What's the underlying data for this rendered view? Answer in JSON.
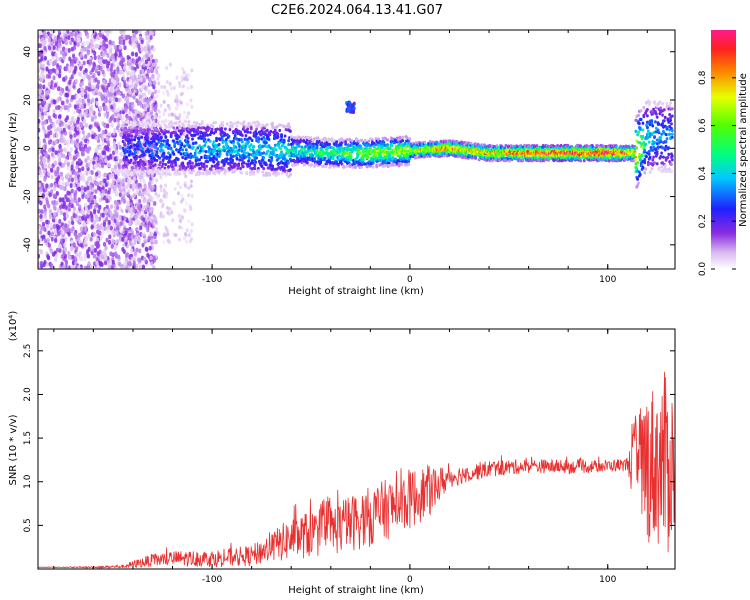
{
  "title": "C2E6.2024.064.13.41.G07",
  "chart_data": [
    {
      "type": "heatmap",
      "xlabel": "Height of straight line (km)",
      "ylabel": "Frequency (Hz)",
      "xlim": [
        -188,
        134
      ],
      "ylim": [
        -50,
        49
      ],
      "xticks": [
        -100,
        0,
        100
      ],
      "yticks": [
        -40,
        -20,
        0,
        20,
        40
      ],
      "grid": false,
      "colorbar": {
        "label": "Normalized spectral amplitude",
        "range": [
          0,
          1
        ],
        "ticks": [
          0.0,
          0.2,
          0.4,
          0.6,
          0.8
        ],
        "colormap": "rainbow: white/lavender → violet → blue → cyan → green → yellow → red → magenta"
      },
      "ridge": {
        "x": [
          -140,
          -120,
          -100,
          -80,
          -60,
          -40,
          -20,
          0,
          20,
          40,
          60,
          80,
          100,
          114,
          120,
          130
        ],
        "frequency_hz": [
          0,
          0,
          0,
          0,
          -1,
          -2,
          -2,
          -1,
          0,
          -2,
          -2,
          -2,
          -2,
          -2,
          5,
          5
        ],
        "amplitude": [
          0.25,
          0.3,
          0.35,
          0.35,
          0.4,
          0.45,
          0.55,
          0.6,
          0.75,
          0.7,
          0.8,
          0.85,
          0.85,
          0.7,
          0.35,
          0.3
        ]
      },
      "side_feature": {
        "x": [
          -32,
          -28
        ],
        "frequency_hz": [
          15,
          19
        ],
        "amplitude": 0.3
      }
    },
    {
      "type": "line",
      "xlabel": "Height of straight line (km)",
      "ylabel": "SNR (10 * v/v)",
      "y_multiplier_label": "(x10⁴)",
      "xlim": [
        -188,
        134
      ],
      "ylim": [
        0,
        2.75
      ],
      "xticks": [
        -100,
        0,
        100
      ],
      "yticks": [
        0.5,
        1.0,
        1.5,
        2.0,
        2.5
      ],
      "ytick_labels": [
        "0.5",
        "1.0",
        "1.5",
        "2.0",
        "2.5"
      ],
      "grid": false,
      "series": [
        {
          "color": "#e83030",
          "x": [
            -188,
            -160,
            -145,
            -130,
            -120,
            -100,
            -80,
            -70,
            -60,
            -40,
            -20,
            0,
            10,
            20,
            30,
            40,
            60,
            80,
            100,
            110,
            115,
            120,
            125,
            130,
            134
          ],
          "y": [
            0.02,
            0.02,
            0.03,
            0.1,
            0.12,
            0.12,
            0.15,
            0.25,
            0.35,
            0.45,
            0.6,
            0.8,
            0.9,
            1.05,
            1.1,
            1.15,
            1.18,
            1.17,
            1.18,
            1.2,
            1.2,
            1.2,
            1.2,
            1.2,
            1.2
          ],
          "noise": [
            0.0,
            0.01,
            0.02,
            0.08,
            0.09,
            0.1,
            0.12,
            0.18,
            0.25,
            0.3,
            0.35,
            0.35,
            0.3,
            0.12,
            0.1,
            0.1,
            0.08,
            0.08,
            0.07,
            0.08,
            0.7,
            0.9,
            0.95,
            1.1,
            0.8
          ]
        }
      ]
    }
  ]
}
